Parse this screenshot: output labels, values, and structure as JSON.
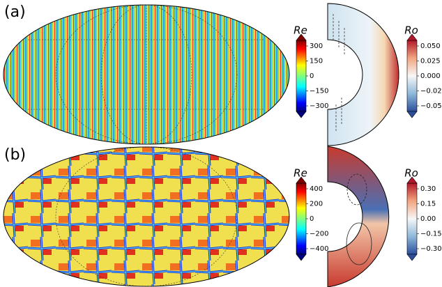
{
  "panels": [
    {
      "label": "(a)",
      "colorbar_re": {
        "title": "Re",
        "ticks": [
          "300",
          "150",
          "0",
          "−150",
          "−300"
        ]
      },
      "colorbar_ro": {
        "title": "Ro",
        "ticks": [
          "0.050",
          "0.025",
          "0.000",
          "−0.025",
          "−0.050"
        ]
      }
    },
    {
      "label": "(b)",
      "colorbar_re": {
        "title": "Re",
        "ticks": [
          "400",
          "200",
          "0",
          "−200",
          "−400"
        ]
      },
      "colorbar_ro": {
        "title": "Ro",
        "ticks": [
          "0.30",
          "0.15",
          "0.00",
          "−0.15",
          "−0.30"
        ]
      }
    }
  ]
}
